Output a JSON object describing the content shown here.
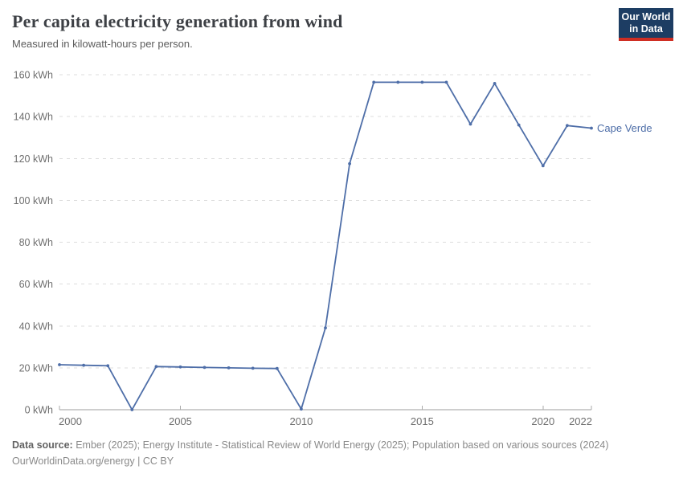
{
  "header": {
    "title": "Per capita electricity generation from wind",
    "subtitle": "Measured in kilowatt-hours per person.",
    "logo": {
      "line1": "Our World",
      "line2": "in Data"
    }
  },
  "chart_data": {
    "type": "line",
    "title": "Per capita electricity generation from wind",
    "ylabel": "kilowatt-hours per person",
    "x": [
      2000,
      2001,
      2002,
      2003,
      2004,
      2005,
      2006,
      2007,
      2008,
      2009,
      2010,
      2011,
      2012,
      2013,
      2014,
      2015,
      2016,
      2017,
      2018,
      2019,
      2020,
      2021,
      2022
    ],
    "series": [
      {
        "name": "Cape Verde",
        "color": "#4e6ea8",
        "values": [
          21.5,
          21.2,
          21.0,
          0,
          20.6,
          20.4,
          20.2,
          20.0,
          19.8,
          19.7,
          0.3,
          39.1,
          117.5,
          156.4,
          156.4,
          156.4,
          156.4,
          136.4,
          155.8,
          136.0,
          116.5,
          135.7,
          134.5
        ]
      }
    ],
    "x_ticks": [
      2000,
      2005,
      2010,
      2015,
      2020,
      2022
    ],
    "y_ticks": [
      0,
      20,
      40,
      60,
      80,
      100,
      120,
      140,
      160
    ],
    "y_tick_suffix": " kWh",
    "xlim": [
      2000,
      2022
    ],
    "ylim": [
      0,
      160
    ],
    "grid": {
      "horizontal": true,
      "style": "dashed"
    },
    "legend": {
      "position": "end-of-line",
      "entries": [
        "Cape Verde"
      ]
    }
  },
  "footer": {
    "datasource_label": "Data source:",
    "datasource_text": " Ember (2025); Energy Institute - Statistical Review of World Energy (2025); Population based on various sources (2024)",
    "link": "OurWorldinData.org/energy",
    "separator": " | ",
    "license": "CC BY"
  },
  "colors": {
    "line": "#4e6ea8",
    "entity_label": "#4e6ea8",
    "grid": "#dcdcdc",
    "axis": "#9e9e9e",
    "tick": "#a9a9a9",
    "tick_label": "#6e6e6e",
    "title": "#3d4045",
    "subtitle": "#5b5b5b",
    "logo_bg": "#1d3d63",
    "logo_red": "#cf2e23"
  }
}
